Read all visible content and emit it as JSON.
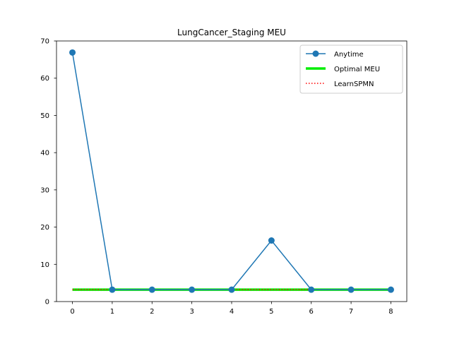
{
  "chart_data": {
    "type": "line",
    "title": "LungCancer_Staging MEU",
    "xlabel": "",
    "ylabel": "",
    "x": [
      0,
      1,
      2,
      3,
      4,
      5,
      6,
      7,
      8
    ],
    "xlim": [
      -0.4,
      8.4
    ],
    "ylim": [
      0,
      70
    ],
    "xticks": [
      "0",
      "1",
      "2",
      "3",
      "4",
      "5",
      "6",
      "7",
      "8"
    ],
    "yticks": [
      "0",
      "10",
      "20",
      "30",
      "40",
      "50",
      "60",
      "70"
    ],
    "grid": false,
    "legend_position": "top-right",
    "series": [
      {
        "name": "Anytime",
        "style": "line-marker",
        "color": "#1f77b4",
        "values": [
          66.9,
          3.2,
          3.2,
          3.2,
          3.2,
          16.4,
          3.2,
          3.2,
          3.2
        ]
      },
      {
        "name": "Optimal MEU",
        "style": "thick-line",
        "color": "#00ee00",
        "values": [
          3.2,
          3.2,
          3.2,
          3.2,
          3.2,
          3.2,
          3.2,
          3.2,
          3.2
        ]
      },
      {
        "name": "LearnSPMN",
        "style": "dotted",
        "color": "#ff0000",
        "values": [
          3.2,
          3.2,
          3.2,
          3.2,
          3.2,
          3.2,
          3.2,
          3.2,
          3.2
        ]
      }
    ]
  }
}
